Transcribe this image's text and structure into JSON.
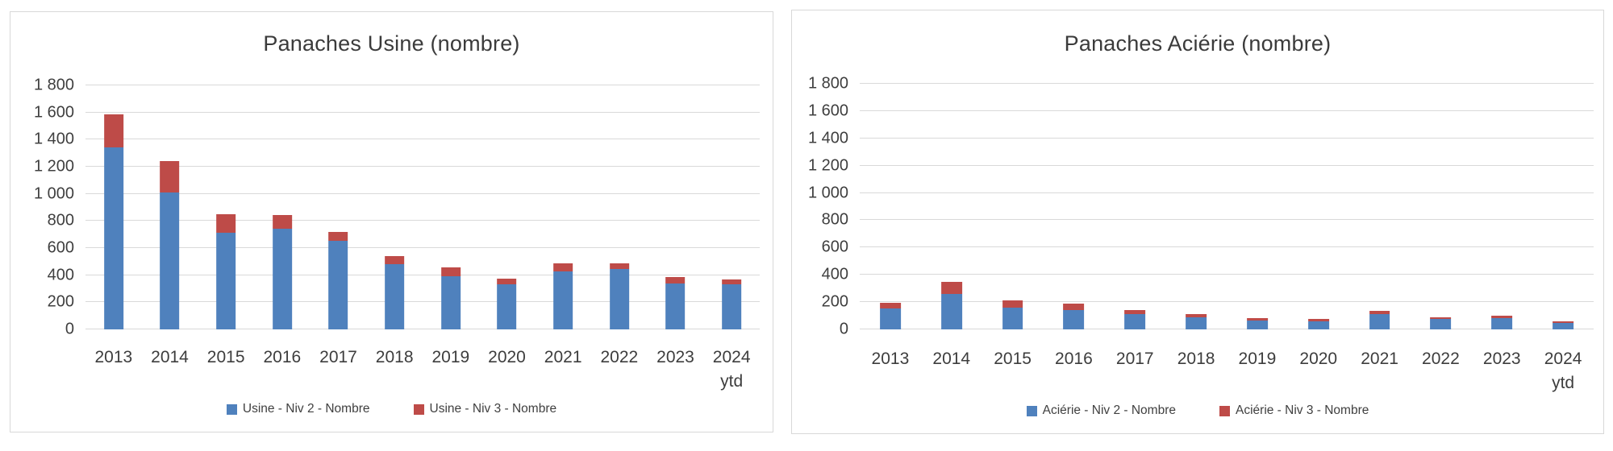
{
  "chart_data": [
    {
      "type": "bar",
      "stacked": true,
      "title": "Panaches Usine (nombre)",
      "xlabel": "",
      "ylabel": "",
      "grid": true,
      "legend_position": "bottom",
      "ylim": [
        0,
        1800
      ],
      "yticks": [
        0,
        200,
        400,
        600,
        800,
        1000,
        1200,
        1400,
        1600,
        1800
      ],
      "ytick_labels": [
        "0",
        "200",
        "400",
        "600",
        "800",
        "1 000",
        "1 200",
        "1 400",
        "1 600",
        "1 800"
      ],
      "categories": [
        "2013",
        "2014",
        "2015",
        "2016",
        "2017",
        "2018",
        "2019",
        "2020",
        "2021",
        "2022",
        "2023",
        "2024\nytd"
      ],
      "series": [
        {
          "name": "Usine - Niv 2 - Nombre",
          "color": "#4F81BD",
          "values": [
            1340,
            1010,
            715,
            740,
            655,
            480,
            390,
            330,
            425,
            445,
            340,
            335
          ]
        },
        {
          "name": "Usine - Niv 3 - Nombre",
          "color": "#BE4B48",
          "values": [
            245,
            230,
            135,
            105,
            65,
            60,
            65,
            45,
            60,
            40,
            45,
            35
          ]
        }
      ]
    },
    {
      "type": "bar",
      "stacked": true,
      "title": "Panaches Aciérie (nombre)",
      "xlabel": "",
      "ylabel": "",
      "grid": true,
      "legend_position": "bottom",
      "ylim": [
        0,
        1800
      ],
      "yticks": [
        0,
        200,
        400,
        600,
        800,
        1000,
        1200,
        1400,
        1600,
        1800
      ],
      "ytick_labels": [
        "0",
        "200",
        "400",
        "600",
        "800",
        "1 000",
        "1 200",
        "1 400",
        "1 600",
        "1 800"
      ],
      "categories": [
        "2013",
        "2014",
        "2015",
        "2016",
        "2017",
        "2018",
        "2019",
        "2020",
        "2021",
        "2022",
        "2023",
        "2024\nytd"
      ],
      "series": [
        {
          "name": "Aciérie - Niv 2 - Nombre",
          "color": "#4F81BD",
          "values": [
            155,
            260,
            160,
            140,
            115,
            90,
            65,
            60,
            115,
            75,
            80,
            50
          ]
        },
        {
          "name": "Aciérie - Niv 3 - Nombre",
          "color": "#BE4B48",
          "values": [
            40,
            90,
            50,
            50,
            25,
            20,
            15,
            15,
            20,
            15,
            20,
            12
          ]
        }
      ]
    }
  ]
}
